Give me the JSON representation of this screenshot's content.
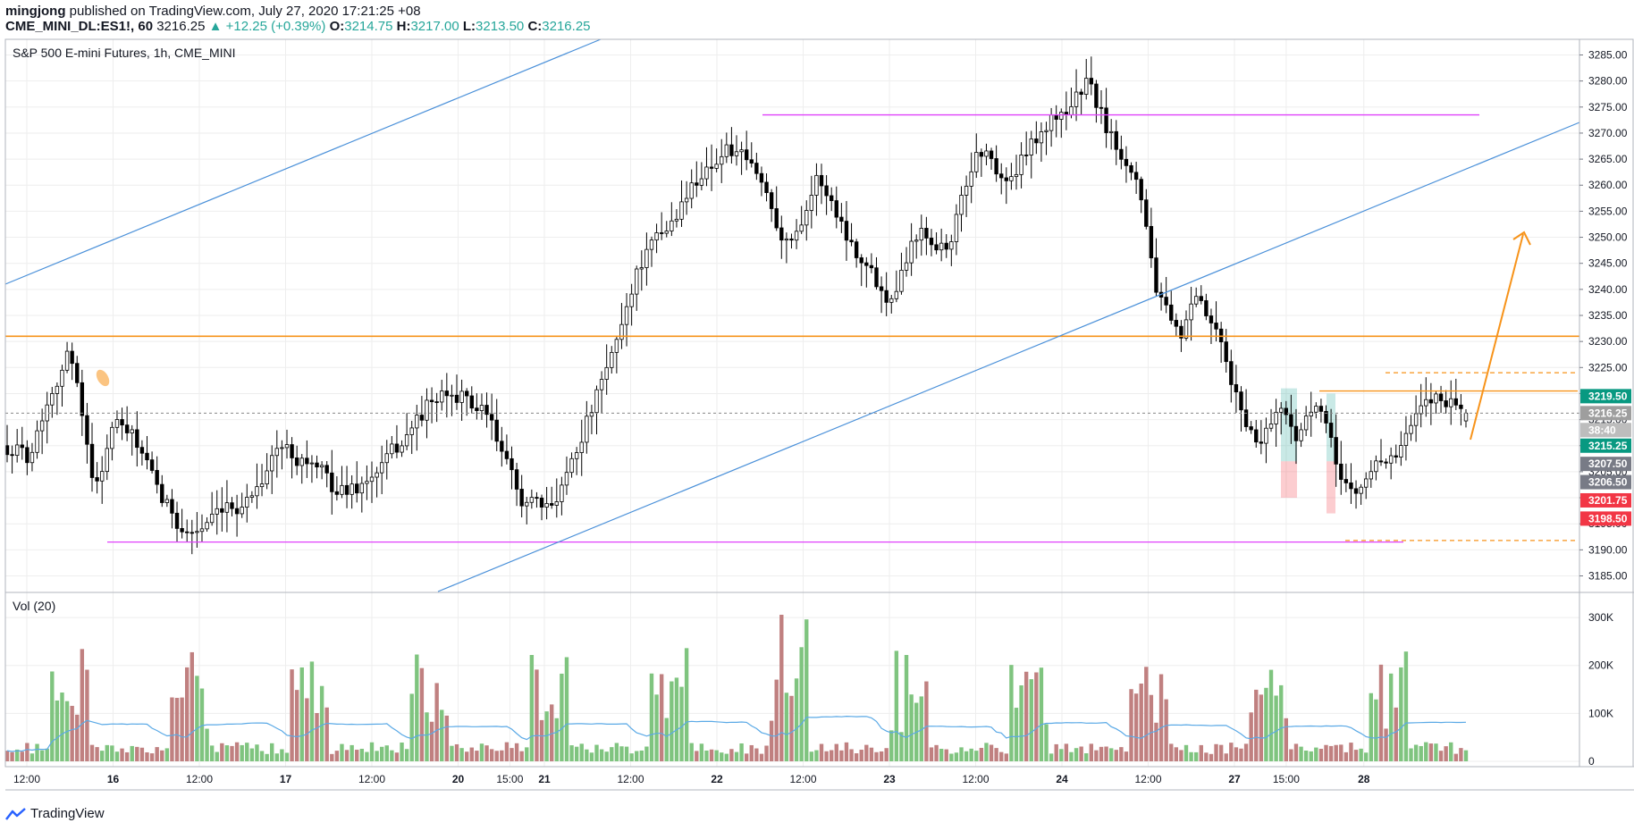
{
  "header": {
    "user": "mingjong",
    "published": "published on TradingView.com, July 27, 2020 17:21:25 +08",
    "symbol": "CME_MINI_DL:ES1!, 60",
    "last": "3216.25",
    "change": "▲ +12.25 (+0.39%)",
    "o_label": "O:",
    "o": "3214.75",
    "h_label": "H:",
    "h": "3217.00",
    "l_label": "L:",
    "l": "3213.50",
    "c_label": "C:",
    "c": "3216.25"
  },
  "pane": {
    "title": "S&P 500 E-mini Futures, 1h, CME_MINI",
    "vol_label": "Vol (20)"
  },
  "brand": "TradingView",
  "colors": {
    "up": "#ffffff",
    "down": "#000000",
    "vol_up": "#7fc47f",
    "vol_down": "#c08080",
    "ma": "#5aa9e6",
    "orange": "#f7931a",
    "magenta": "#e040fb",
    "trend": "#4a90d9",
    "grid": "#eeeeee"
  },
  "chart_data": {
    "type": "candlestick",
    "y_ticks": [
      "3285.00",
      "3280.00",
      "3275.00",
      "3270.00",
      "3265.00",
      "3260.00",
      "3255.00",
      "3250.00",
      "3245.00",
      "3240.00",
      "3235.00",
      "3230.00",
      "3225.00",
      "3220.00",
      "3215.00",
      "3210.00",
      "3205.00",
      "3200.00",
      "3195.00",
      "3190.00",
      "3185.00"
    ],
    "ylim": [
      3182,
      3288
    ],
    "x_ticks": [
      {
        "label": "12:00",
        "day": 0.0
      },
      {
        "label": "16",
        "day": 0.5
      },
      {
        "label": "12:00",
        "day": 1.0
      },
      {
        "label": "17",
        "day": 1.5
      },
      {
        "label": "12:00",
        "day": 2.0
      },
      {
        "label": "20",
        "day": 2.5
      },
      {
        "label": "15:00",
        "day": 2.8
      },
      {
        "label": "21",
        "day": 3.0
      },
      {
        "label": "12:00",
        "day": 3.5
      },
      {
        "label": "22",
        "day": 4.0
      },
      {
        "label": "12:00",
        "day": 4.5
      },
      {
        "label": "23",
        "day": 5.0
      },
      {
        "label": "12:00",
        "day": 5.5
      },
      {
        "label": "24",
        "day": 6.0
      },
      {
        "label": "12:00",
        "day": 6.5
      },
      {
        "label": "27",
        "day": 7.0
      },
      {
        "label": "15:00",
        "day": 7.3
      },
      {
        "label": "28",
        "day": 7.75
      }
    ],
    "anchors": [
      [
        0,
        3210
      ],
      [
        4,
        3208
      ],
      [
        8,
        3220
      ],
      [
        12,
        3228
      ],
      [
        14,
        3222
      ],
      [
        17,
        3200
      ],
      [
        21,
        3215
      ],
      [
        26,
        3210
      ],
      [
        30,
        3200
      ],
      [
        36,
        3193
      ],
      [
        42,
        3196
      ],
      [
        48,
        3200
      ],
      [
        54,
        3210
      ],
      [
        60,
        3207
      ],
      [
        66,
        3201
      ],
      [
        72,
        3203
      ],
      [
        78,
        3210
      ],
      [
        84,
        3218
      ],
      [
        90,
        3220
      ],
      [
        96,
        3215
      ],
      [
        102,
        3200
      ],
      [
        108,
        3197
      ],
      [
        114,
        3211
      ],
      [
        120,
        3225
      ],
      [
        126,
        3245
      ],
      [
        132,
        3252
      ],
      [
        138,
        3262
      ],
      [
        144,
        3267
      ],
      [
        150,
        3262
      ],
      [
        156,
        3248
      ],
      [
        162,
        3262
      ],
      [
        168,
        3250
      ],
      [
        176,
        3238
      ],
      [
        182,
        3252
      ],
      [
        188,
        3248
      ],
      [
        194,
        3268
      ],
      [
        200,
        3260
      ],
      [
        206,
        3270
      ],
      [
        212,
        3275
      ],
      [
        216,
        3280
      ],
      [
        220,
        3270
      ],
      [
        226,
        3262
      ],
      [
        230,
        3238
      ],
      [
        234,
        3230
      ],
      [
        238,
        3238
      ],
      [
        242,
        3230
      ],
      [
        246,
        3218
      ],
      [
        250,
        3210
      ],
      [
        254,
        3218
      ],
      [
        258,
        3212
      ],
      [
        262,
        3218
      ],
      [
        266,
        3205
      ],
      [
        270,
        3200
      ],
      [
        274,
        3208
      ],
      [
        278,
        3208
      ],
      [
        282,
        3216
      ],
      [
        286,
        3220
      ],
      [
        290,
        3218
      ],
      [
        292,
        3216
      ]
    ],
    "last_index": 292,
    "volume_ticks": [
      "300K",
      "200K",
      "100K",
      "0"
    ],
    "volume_ylim": [
      0,
      330000
    ],
    "price_labels": [
      {
        "value": "3219.50",
        "y": 3219.5,
        "color": "#089981"
      },
      {
        "value": "3216.25",
        "y": 3216.25,
        "color": "#9e9e9e"
      },
      {
        "value": "38:40",
        "y": 3213.0,
        "color": "#bdbdbd"
      },
      {
        "value": "3215.25",
        "y": 3210.0,
        "color": "#089981"
      },
      {
        "value": "3207.50",
        "y": 3206.5,
        "color": "#787b86"
      },
      {
        "value": "3206.50",
        "y": 3203.0,
        "color": "#787b86"
      },
      {
        "value": "3201.75",
        "y": 3199.5,
        "color": "#f23645"
      },
      {
        "value": "3198.50",
        "y": 3196.0,
        "color": "#f23645"
      }
    ],
    "drawings": {
      "orange_level": 3231.0,
      "magenta_low": 3191.5,
      "magenta_high": 3273.5,
      "orange_short": 3220.5,
      "dashed_high": 3224.0,
      "dashed_low": 3191.8,
      "last_price": 3216.25
    }
  }
}
